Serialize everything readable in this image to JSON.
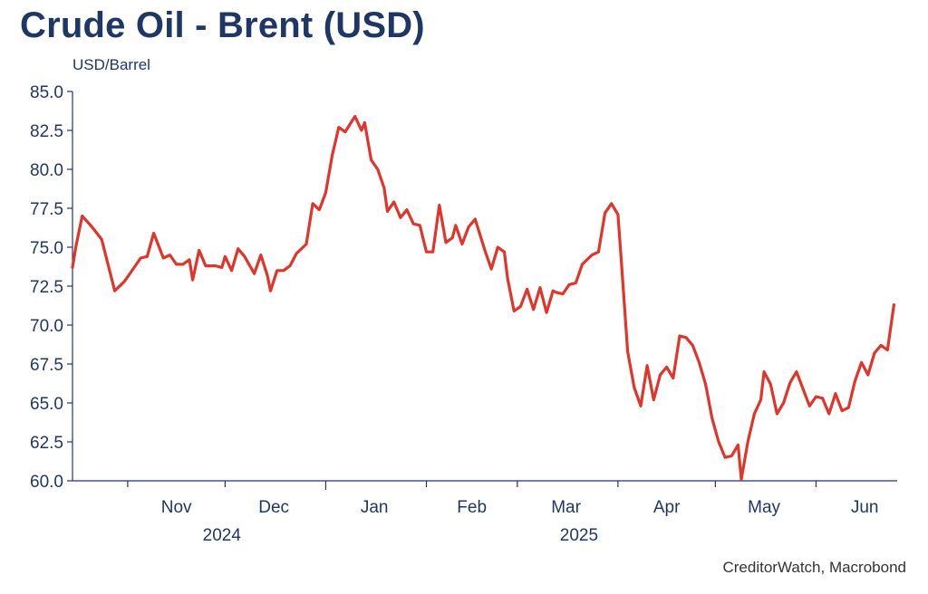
{
  "title": "Crude Oil - Brent (USD)",
  "source": "CreditorWatch, Macrobond",
  "colors": {
    "title": "#1f3764",
    "line": "#e0352b",
    "axis": "#1f3764"
  },
  "chart_data": {
    "type": "line",
    "title": "Crude Oil - Brent (USD)",
    "ylabel": "USD/Barrel",
    "xlabel": "",
    "ylim": [
      60,
      85
    ],
    "yticks": [
      "60.0",
      "62.5",
      "65.0",
      "67.5",
      "70.0",
      "72.5",
      "75.0",
      "77.5",
      "80.0",
      "82.5",
      "85.0"
    ],
    "xlim": [
      "2024-10-15",
      "2025-06-26"
    ],
    "month_labels": [
      {
        "label": "Nov",
        "date": "2024-11-16"
      },
      {
        "label": "Dec",
        "date": "2024-12-16"
      },
      {
        "label": "Jan",
        "date": "2025-01-16"
      },
      {
        "label": "Feb",
        "date": "2025-02-15"
      },
      {
        "label": "Mar",
        "date": "2025-03-16"
      },
      {
        "label": "Apr",
        "date": "2025-04-16"
      },
      {
        "label": "May",
        "date": "2025-05-16"
      },
      {
        "label": "Jun",
        "date": "2025-06-16"
      }
    ],
    "year_labels": [
      {
        "label": "2024",
        "date": "2024-11-30"
      },
      {
        "label": "2025",
        "date": "2025-03-20"
      }
    ],
    "grid": false,
    "legend": "none",
    "series": [
      {
        "x": [
          "2024-10-15",
          "2024-10-16",
          "2024-10-18",
          "2024-10-21",
          "2024-10-24",
          "2024-10-28",
          "2024-10-31",
          "2024-11-02",
          "2024-11-05",
          "2024-11-07",
          "2024-11-09",
          "2024-11-12",
          "2024-11-14",
          "2024-11-16",
          "2024-11-18",
          "2024-11-20",
          "2024-11-21",
          "2024-11-23",
          "2024-11-25",
          "2024-11-28",
          "2024-11-30",
          "2024-12-01",
          "2024-12-03",
          "2024-12-05",
          "2024-12-07",
          "2024-12-10",
          "2024-12-12",
          "2024-12-14",
          "2024-12-15",
          "2024-12-17",
          "2024-12-19",
          "2024-12-21",
          "2024-12-23",
          "2024-12-26",
          "2024-12-28",
          "2024-12-30",
          "2025-01-01",
          "2025-01-03",
          "2025-01-05",
          "2025-01-07",
          "2025-01-10",
          "2025-01-12",
          "2025-01-13",
          "2025-01-15",
          "2025-01-17",
          "2025-01-19",
          "2025-01-20",
          "2025-01-22",
          "2025-01-24",
          "2025-01-26",
          "2025-01-28",
          "2025-01-30",
          "2025-02-01",
          "2025-02-03",
          "2025-02-05",
          "2025-02-07",
          "2025-02-09",
          "2025-02-10",
          "2025-02-12",
          "2025-02-14",
          "2025-02-16",
          "2025-02-19",
          "2025-02-21",
          "2025-02-23",
          "2025-02-25",
          "2025-02-26",
          "2025-02-28",
          "2025-03-02",
          "2025-03-04",
          "2025-03-06",
          "2025-03-08",
          "2025-03-10",
          "2025-03-12",
          "2025-03-13",
          "2025-03-15",
          "2025-03-17",
          "2025-03-19",
          "2025-03-21",
          "2025-03-24",
          "2025-03-26",
          "2025-03-28",
          "2025-03-30",
          "2025-04-01",
          "2025-04-02",
          "2025-04-04",
          "2025-04-06",
          "2025-04-08",
          "2025-04-10",
          "2025-04-12",
          "2025-04-14",
          "2025-04-16",
          "2025-04-18",
          "2025-04-20",
          "2025-04-22",
          "2025-04-24",
          "2025-04-26",
          "2025-04-28",
          "2025-04-30",
          "2025-05-02",
          "2025-05-04",
          "2025-05-06",
          "2025-05-08",
          "2025-05-09",
          "2025-05-11",
          "2025-05-13",
          "2025-05-15",
          "2025-05-16",
          "2025-05-18",
          "2025-05-20",
          "2025-05-22",
          "2025-05-24",
          "2025-05-26",
          "2025-05-28",
          "2025-05-30",
          "2025-06-01",
          "2025-06-03",
          "2025-06-05",
          "2025-06-07",
          "2025-06-09",
          "2025-06-11",
          "2025-06-13",
          "2025-06-15",
          "2025-06-17",
          "2025-06-19",
          "2025-06-21",
          "2025-06-23",
          "2025-06-25"
        ],
        "y": [
          73.7,
          75.0,
          77.0,
          76.3,
          75.5,
          72.2,
          72.8,
          73.4,
          74.3,
          74.4,
          75.9,
          74.3,
          74.5,
          73.9,
          73.9,
          74.2,
          72.9,
          74.8,
          73.8,
          73.8,
          73.7,
          74.4,
          73.5,
          74.9,
          74.4,
          73.3,
          74.5,
          73.2,
          72.2,
          73.5,
          73.5,
          73.8,
          74.6,
          75.2,
          77.8,
          77.4,
          78.5,
          80.9,
          82.7,
          82.4,
          83.4,
          82.5,
          83.0,
          80.6,
          80.0,
          78.8,
          77.3,
          77.9,
          76.9,
          77.4,
          76.5,
          76.4,
          74.7,
          74.7,
          77.7,
          75.3,
          75.6,
          76.4,
          75.2,
          76.3,
          76.8,
          74.8,
          73.6,
          75.0,
          74.7,
          73.0,
          70.9,
          71.2,
          72.3,
          71.0,
          72.4,
          70.8,
          72.2,
          72.1,
          72.0,
          72.6,
          72.7,
          73.9,
          74.5,
          74.7,
          77.2,
          77.8,
          77.1,
          74.2,
          68.3,
          66.0,
          64.8,
          67.4,
          65.2,
          66.8,
          67.3,
          66.6,
          69.3,
          69.2,
          68.7,
          67.6,
          66.2,
          64.0,
          62.5,
          61.5,
          61.6,
          62.3,
          60.1,
          62.5,
          64.3,
          65.2,
          67.0,
          66.2,
          64.3,
          65.0,
          66.3,
          67.0,
          65.9,
          64.8,
          65.4,
          65.3,
          64.3,
          65.6,
          64.5,
          64.7,
          66.4,
          67.6,
          66.8,
          68.2,
          68.7,
          68.4,
          71.3
        ]
      }
    ]
  }
}
